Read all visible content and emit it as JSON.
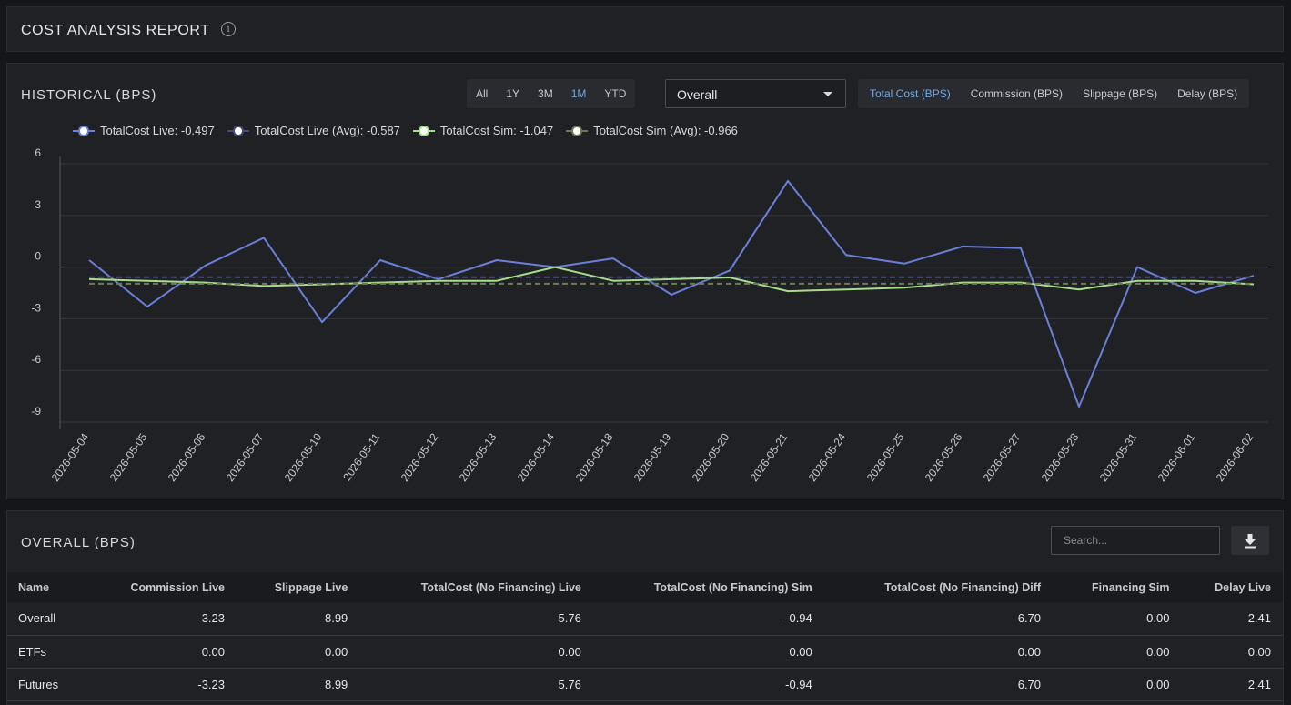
{
  "header": {
    "title": "COST ANALYSIS REPORT",
    "info_icon": "info-icon"
  },
  "historical": {
    "title": "HISTORICAL (BPS)",
    "ranges": [
      "All",
      "1Y",
      "3M",
      "1M",
      "YTD"
    ],
    "active_range": "1M",
    "group_select": "Overall",
    "metrics": [
      "Total Cost (BPS)",
      "Commission (BPS)",
      "Slippage (BPS)",
      "Delay (BPS)"
    ],
    "active_metric": "Total Cost (BPS)",
    "legend": [
      {
        "label": "TotalCost Live: -0.497",
        "color": "#6c7fd8",
        "dashed": false
      },
      {
        "label": "TotalCost Live (Avg): -0.587",
        "color": "#454a7a",
        "dashed": true
      },
      {
        "label": "TotalCost Sim: -1.047",
        "color": "#a6dd8c",
        "dashed": false
      },
      {
        "label": "TotalCost Sim (Avg): -0.966",
        "color": "#6d7b55",
        "dashed": true
      }
    ]
  },
  "chart_data": {
    "type": "line",
    "x": [
      "2026-05-04",
      "2026-05-05",
      "2026-05-06",
      "2026-05-07",
      "2026-05-10",
      "2026-05-11",
      "2026-05-12",
      "2026-05-13",
      "2026-05-14",
      "2026-05-18",
      "2026-05-19",
      "2026-05-20",
      "2026-05-21",
      "2026-05-24",
      "2026-05-25",
      "2026-05-26",
      "2026-05-27",
      "2026-05-28",
      "2026-05-31",
      "2026-06-01",
      "2026-06-02"
    ],
    "ylim": [
      -9,
      6
    ],
    "yticks": [
      6,
      3,
      0,
      -3,
      -6,
      -9
    ],
    "grid": true,
    "legend_position": "top-left",
    "series": [
      {
        "name": "TotalCost Live",
        "color": "#6c7fd8",
        "style": "solid",
        "values": [
          0.4,
          -2.3,
          0.1,
          1.7,
          -3.2,
          0.4,
          -0.7,
          0.4,
          0.0,
          0.5,
          -1.6,
          -0.2,
          5.0,
          0.7,
          0.2,
          1.2,
          1.1,
          -8.1,
          0.0,
          -1.5,
          -0.5
        ]
      },
      {
        "name": "TotalCost Live (Avg)",
        "color": "#454a7a",
        "style": "dashed",
        "values": [
          -0.587,
          -0.587,
          -0.587,
          -0.587,
          -0.587,
          -0.587,
          -0.587,
          -0.587,
          -0.587,
          -0.587,
          -0.587,
          -0.587,
          -0.587,
          -0.587,
          -0.587,
          -0.587,
          -0.587,
          -0.587,
          -0.587,
          -0.587,
          -0.587
        ]
      },
      {
        "name": "TotalCost Sim",
        "color": "#a6dd8c",
        "style": "solid",
        "values": [
          -0.7,
          -0.8,
          -0.9,
          -1.1,
          -1.0,
          -0.9,
          -0.8,
          -0.8,
          0.0,
          -0.8,
          -0.7,
          -0.6,
          -1.4,
          -1.3,
          -1.2,
          -0.9,
          -0.9,
          -1.3,
          -0.8,
          -0.8,
          -1.0
        ]
      },
      {
        "name": "TotalCost Sim (Avg)",
        "color": "#6d7b55",
        "style": "dashed",
        "values": [
          -0.966,
          -0.966,
          -0.966,
          -0.966,
          -0.966,
          -0.966,
          -0.966,
          -0.966,
          -0.966,
          -0.966,
          -0.966,
          -0.966,
          -0.966,
          -0.966,
          -0.966,
          -0.966,
          -0.966,
          -0.966,
          -0.966,
          -0.966,
          -0.966
        ]
      }
    ]
  },
  "overall": {
    "title": "OVERALL (BPS)",
    "search_placeholder": "Search...",
    "download_icon": "download-icon",
    "columns": [
      "Name",
      "Commission Live",
      "Slippage Live",
      "TotalCost (No Financing) Live",
      "TotalCost (No Financing) Sim",
      "TotalCost (No Financing) Diff",
      "Financing Sim",
      "Delay Live"
    ],
    "rows": [
      [
        "Overall",
        "-3.23",
        "8.99",
        "5.76",
        "-0.94",
        "6.70",
        "0.00",
        "2.41"
      ],
      [
        "ETFs",
        "0.00",
        "0.00",
        "0.00",
        "0.00",
        "0.00",
        "0.00",
        "0.00"
      ],
      [
        "Futures",
        "-3.23",
        "8.99",
        "5.76",
        "-0.94",
        "6.70",
        "0.00",
        "2.41"
      ]
    ]
  }
}
